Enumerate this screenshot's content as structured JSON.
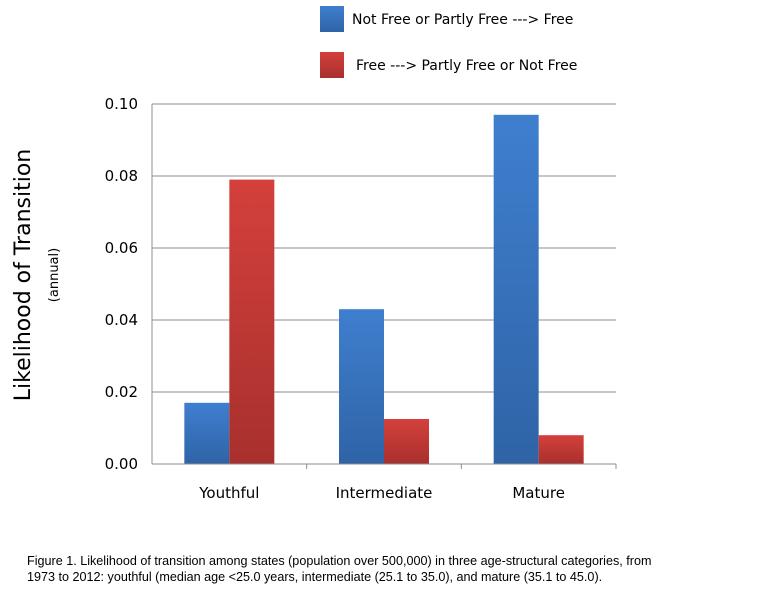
{
  "chart_data": {
    "type": "bar",
    "categories": [
      "Youthful",
      "Intermediate",
      "Mature"
    ],
    "series": [
      {
        "name": "Not Free or Partly Free ---> Free",
        "color": "#3b78c4",
        "values": [
          0.017,
          0.043,
          0.097
        ]
      },
      {
        "name": "Free ---> Partly Free or Not Free",
        "color": "#c83a37",
        "values": [
          0.079,
          0.0125,
          0.008
        ]
      }
    ],
    "ylabel": "Likelihood of Transition",
    "ylabel_sub": "(annual)",
    "ylim": [
      0,
      0.1
    ],
    "yticks": [
      "0.00",
      "0.02",
      "0.04",
      "0.06",
      "0.08",
      "0.10"
    ],
    "grid": true,
    "legend_position": "top"
  },
  "caption": {
    "line1": "Figure 1.  Likelihood of transition among states (population over 500,000) in three age-structural  categories, from",
    "line2": "1973 to 2012: youthful  (median age <25.0 years, intermediate (25.1 to 35.0), and mature (35.1 to 45.0)."
  }
}
